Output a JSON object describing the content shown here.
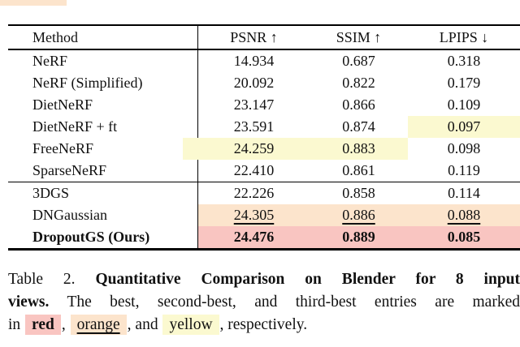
{
  "colors": {
    "best": "#f9c5c1",
    "second_best": "#fce4cc",
    "third_best": "#fbf9d0",
    "text": "#111111",
    "rule": "#000000"
  },
  "table": {
    "headers": {
      "method": "Method",
      "psnr": "PSNR ↑",
      "ssim": "SSIM ↑",
      "lpips": "LPIPS ↓"
    },
    "sections": [
      {
        "rows": [
          {
            "method": "NeRF",
            "psnr": "14.934",
            "ssim": "0.687",
            "lpips": "0.318"
          },
          {
            "method": "NeRF (Simplified)",
            "psnr": "20.092",
            "ssim": "0.822",
            "lpips": "0.179"
          },
          {
            "method": "DietNeRF",
            "psnr": "23.147",
            "ssim": "0.866",
            "lpips": "0.109"
          },
          {
            "method": "DietNeRF + ft",
            "psnr": "23.591",
            "ssim": "0.874",
            "lpips": "0.097",
            "lpips_mark": "third_best"
          },
          {
            "method": "FreeNeRF",
            "psnr": "24.259",
            "ssim": "0.883",
            "lpips": "0.098",
            "psnr_mark": "third_best",
            "ssim_mark": "third_best"
          },
          {
            "method": "SparseNeRF",
            "psnr": "22.410",
            "ssim": "0.861",
            "lpips": "0.119"
          }
        ]
      },
      {
        "rows": [
          {
            "method": "3DGS",
            "psnr": "22.226",
            "ssim": "0.858",
            "lpips": "0.114"
          },
          {
            "method": "DNGaussian",
            "psnr": "24.305",
            "ssim": "0.886",
            "lpips": "0.088",
            "psnr_mark": "second_best",
            "ssim_mark": "second_best",
            "lpips_mark": "second_best"
          },
          {
            "method": "DropoutGS (Ours)",
            "psnr": "24.476",
            "ssim": "0.889",
            "lpips": "0.085",
            "psnr_mark": "best",
            "ssim_mark": "best",
            "lpips_mark": "best"
          }
        ]
      }
    ]
  },
  "caption": {
    "label": "Table 2.",
    "title_bold_line1": "Quantitative Comparison on Blender for 8 input",
    "title_bold_line2": "views.",
    "body_line2": "The best, second-best, and third-best entries are marked",
    "in_word": "in",
    "word_red": "red",
    "comma1": ",",
    "word_orange": "orange",
    "comma2": ", and",
    "word_yellow": "yellow",
    "tail": ", respectively."
  }
}
